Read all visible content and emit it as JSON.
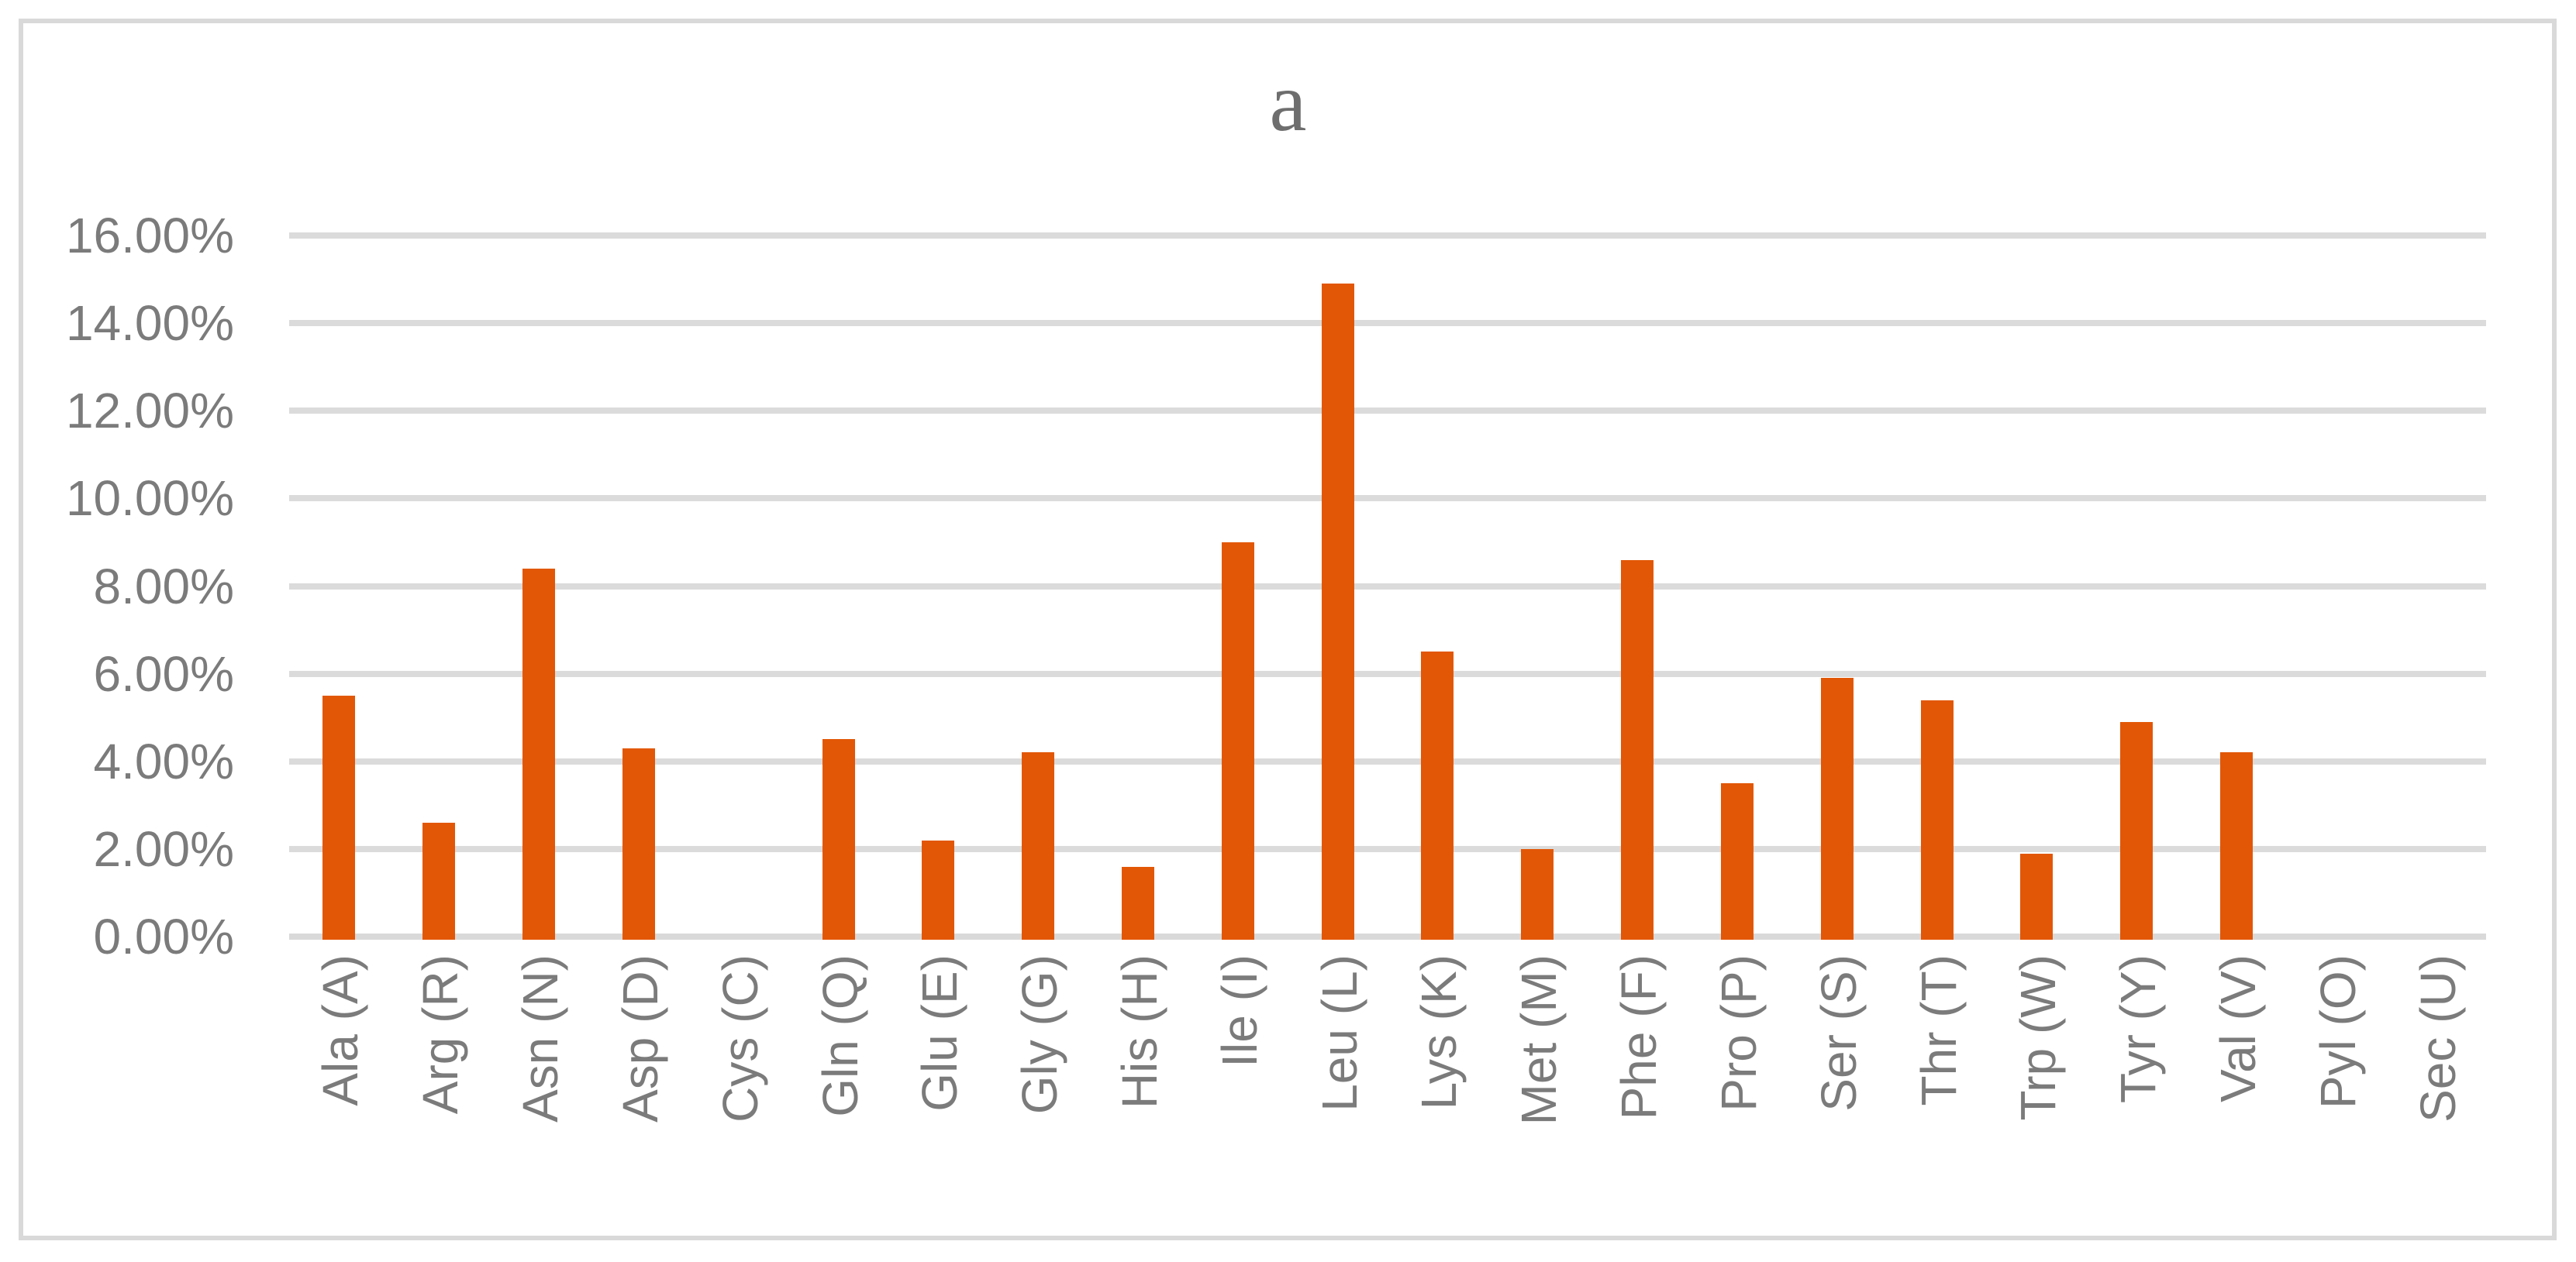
{
  "title": "a",
  "colors": {
    "bar": "#E25706",
    "gridline": "#DBDBDB",
    "axis_line": "#D9D9D9",
    "frame_border": "#D9D9D9",
    "tick_text": "#7B7B7B",
    "title_text": "#6E6E6E",
    "background": "#FFFFFF"
  },
  "y_axis": {
    "tick_labels": [
      "0.00%",
      "2.00%",
      "4.00%",
      "6.00%",
      "8.00%",
      "10.00%",
      "12.00%",
      "14.00%",
      "16.00%"
    ],
    "tick_values": [
      0,
      2,
      4,
      6,
      8,
      10,
      12,
      14,
      16
    ]
  },
  "chart_data": {
    "type": "bar",
    "title": "a",
    "categories": [
      "Ala (A)",
      "Arg (R)",
      "Asn (N)",
      "Asp (D)",
      "Cys (C)",
      "Gln (Q)",
      "Glu (E)",
      "Gly (G)",
      "His (H)",
      "Ile (I)",
      "Leu (L)",
      "Lys (K)",
      "Met (M)",
      "Phe (F)",
      "Pro (P)",
      "Ser (S)",
      "Thr (T)",
      "Trp (W)",
      "Tyr (Y)",
      "Val (V)",
      "Pyl (O)",
      "Sec (U)"
    ],
    "values": [
      5.5,
      2.6,
      8.4,
      4.3,
      0,
      4.5,
      2.2,
      4.2,
      1.6,
      9.0,
      14.9,
      6.5,
      2.0,
      8.6,
      3.5,
      5.9,
      5.4,
      1.9,
      4.9,
      4.2,
      0,
      0
    ],
    "value_unit": "%",
    "xlabel": "",
    "ylabel": "",
    "ylim": [
      0,
      16
    ],
    "grid": true,
    "legend": false
  }
}
